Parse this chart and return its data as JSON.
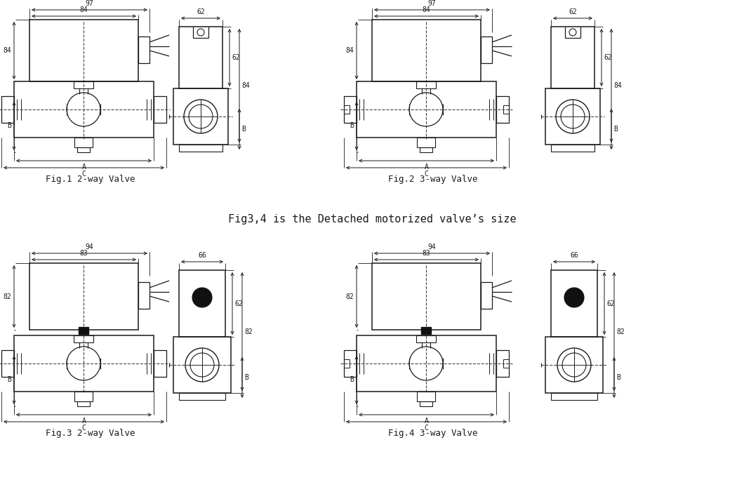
{
  "fig1_caption": "Fig.1 2-way Valve",
  "fig2_caption": "Fig.2 3-way Valve",
  "fig3_caption": "Fig.3 2-way Valve",
  "fig4_caption": "Fig.4 3-way Valve",
  "middle_text": "Fig3,4 is the Detached motorized valve’s size",
  "line_color": "#1a1a1a",
  "bg_color": "#ffffff",
  "dashed_color": "#444444"
}
